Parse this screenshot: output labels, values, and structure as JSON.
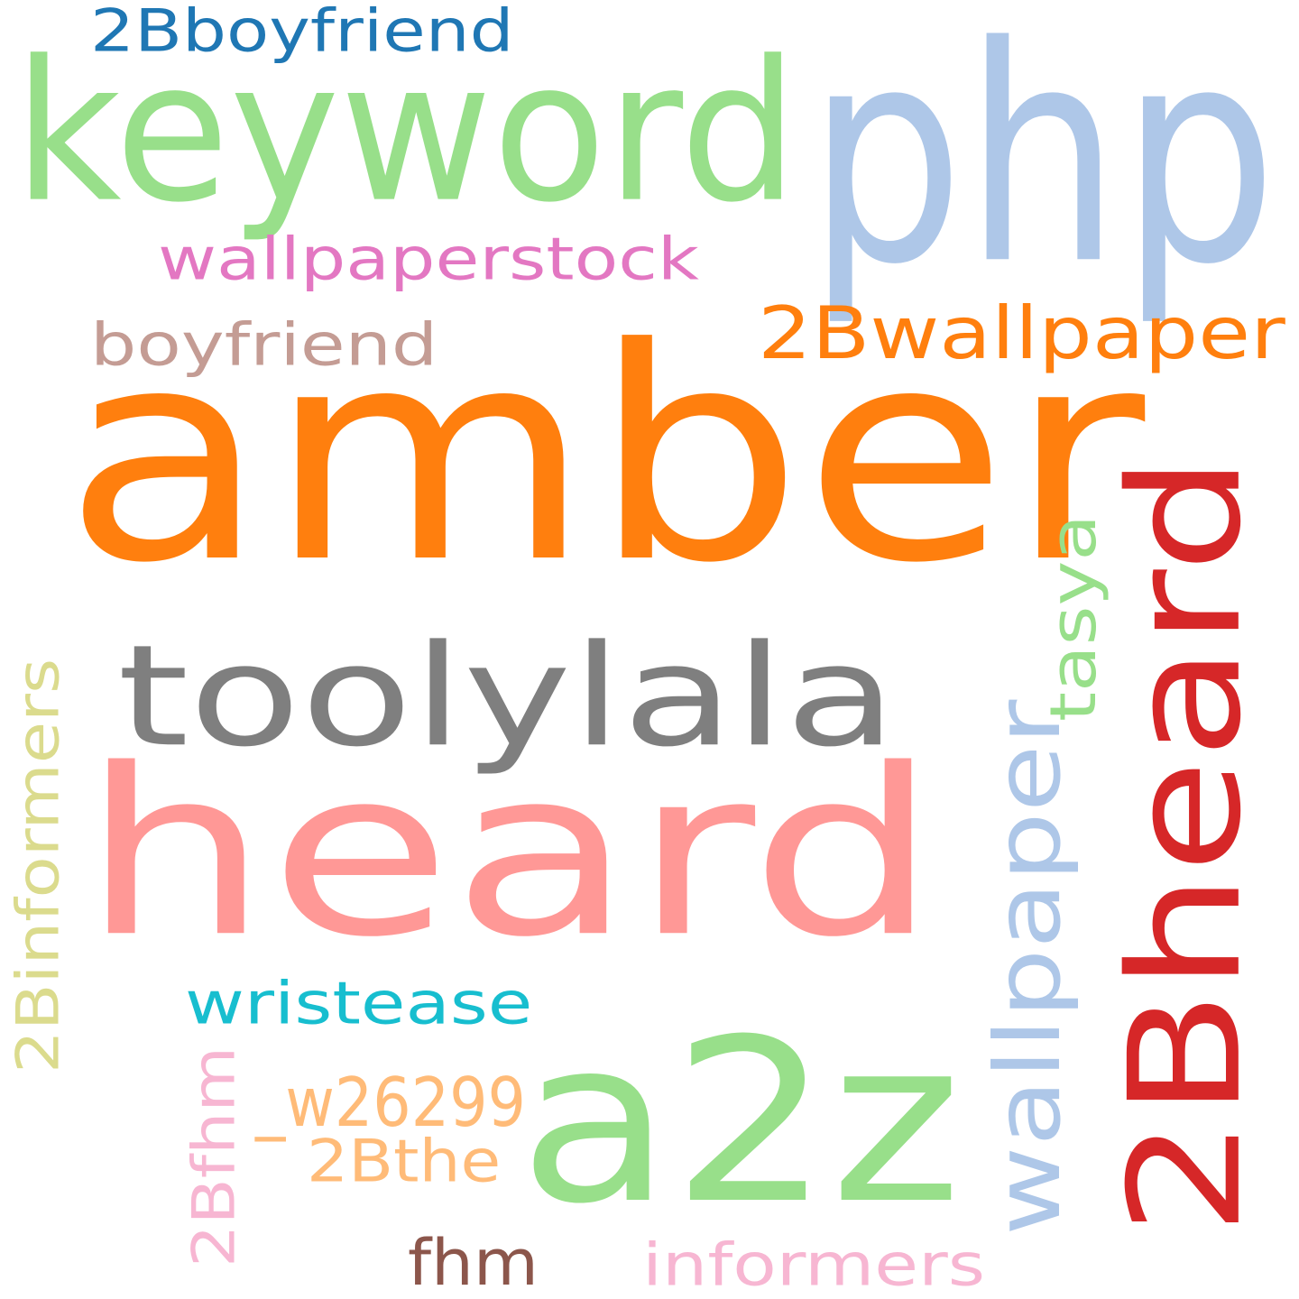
{
  "words": [
    {
      "id": "amber",
      "text": "amber",
      "color": "#ff7f0e",
      "rotated": false
    },
    {
      "id": "heard",
      "text": "heard",
      "color": "#ff9896",
      "rotated": false
    },
    {
      "id": "php",
      "text": "php",
      "color": "#aec7e8",
      "rotated": false
    },
    {
      "id": "keyword",
      "text": "keyword",
      "color": "#98df8a",
      "rotated": false
    },
    {
      "id": "a2z",
      "text": "a2z",
      "color": "#98df8a",
      "rotated": false
    },
    {
      "id": "2bheard",
      "text": "2Bheard",
      "color": "#d62728",
      "rotated": true
    },
    {
      "id": "toolylala",
      "text": "toolylala",
      "color": "#7f7f7f",
      "rotated": false
    },
    {
      "id": "wallpaper",
      "text": "wallpaper",
      "color": "#aec7e8",
      "rotated": true
    },
    {
      "id": "2bwallpaper",
      "text": "2Bwallpaper",
      "color": "#ff7f0e",
      "rotated": false
    },
    {
      "id": "2binformers",
      "text": "2Binformers",
      "color": "#dbdb8d",
      "rotated": true
    },
    {
      "id": "wallpaperstock",
      "text": "wallpaperstock",
      "color": "#e377c2",
      "rotated": false
    },
    {
      "id": "2bboyfriend",
      "text": "2Bboyfriend",
      "color": "#1f77b4",
      "rotated": false
    },
    {
      "id": "boyfriend",
      "text": "boyfriend",
      "color": "#c49c94",
      "rotated": false
    },
    {
      "id": "wristease",
      "text": "wristease",
      "color": "#17becf",
      "rotated": false
    },
    {
      "id": "w26299",
      "text": "_w26299",
      "color": "#ffbb78",
      "rotated": false
    },
    {
      "id": "2bfhm",
      "text": "2Bfhm",
      "color": "#f7b6d2",
      "rotated": true
    },
    {
      "id": "tasya",
      "text": "tasya",
      "color": "#98df8a",
      "rotated": true
    },
    {
      "id": "2bthe",
      "text": "2Bthe",
      "color": "#ffbb78",
      "rotated": false
    },
    {
      "id": "fhm",
      "text": "fhm",
      "color": "#8c564b",
      "rotated": false
    },
    {
      "id": "informers",
      "text": "informers",
      "color": "#f7b6d2",
      "rotated": false
    }
  ]
}
